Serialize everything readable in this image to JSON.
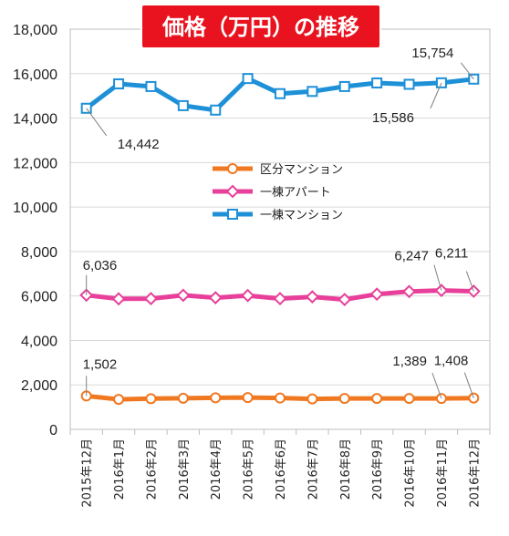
{
  "chart_data": {
    "type": "line",
    "title": "価格（万円）の推移",
    "categories": [
      "2015年12月",
      "2016年1月",
      "2016年2月",
      "2016年3月",
      "2016年4月",
      "2016年5月",
      "2016年6月",
      "2016年7月",
      "2016年8月",
      "2016年9月",
      "2016年10月",
      "2016年11月",
      "2016年12月"
    ],
    "ylim": [
      0,
      18000
    ],
    "yticks": [
      0,
      2000,
      4000,
      6000,
      8000,
      10000,
      12000,
      14000,
      16000,
      18000
    ],
    "ytick_labels": [
      "0",
      "2,000",
      "4,000",
      "6,000",
      "8,000",
      "10,000",
      "12,000",
      "14,000",
      "16,000",
      "18,000"
    ],
    "grid": "horizontal",
    "legend_position": "center",
    "series": [
      {
        "name": "区分マンション",
        "color": "#f07820",
        "marker": "circle",
        "values": [
          1502,
          1350,
          1380,
          1400,
          1420,
          1430,
          1410,
          1370,
          1390,
          1390,
          1390,
          1389,
          1408
        ]
      },
      {
        "name": "一棟アパート",
        "color": "#e8409a",
        "marker": "diamond",
        "values": [
          6036,
          5870,
          5880,
          6030,
          5920,
          6020,
          5880,
          5960,
          5840,
          6080,
          6200,
          6247,
          6211
        ]
      },
      {
        "name": "一棟マンション",
        "color": "#1e90d8",
        "marker": "square",
        "values": [
          14442,
          15540,
          15420,
          14560,
          14360,
          15780,
          15100,
          15200,
          15420,
          15580,
          15520,
          15586,
          15754
        ]
      }
    ],
    "annotations": [
      {
        "series": 2,
        "index": 0,
        "text": "14,442"
      },
      {
        "series": 2,
        "index": 11,
        "text": "15,586"
      },
      {
        "series": 2,
        "index": 12,
        "text": "15,754"
      },
      {
        "series": 1,
        "index": 0,
        "text": "6,036"
      },
      {
        "series": 1,
        "index": 11,
        "text": "6,247"
      },
      {
        "series": 1,
        "index": 12,
        "text": "6,211"
      },
      {
        "series": 0,
        "index": 0,
        "text": "1,502"
      },
      {
        "series": 0,
        "index": 11,
        "text": "1,389"
      },
      {
        "series": 0,
        "index": 12,
        "text": "1,408"
      }
    ]
  }
}
